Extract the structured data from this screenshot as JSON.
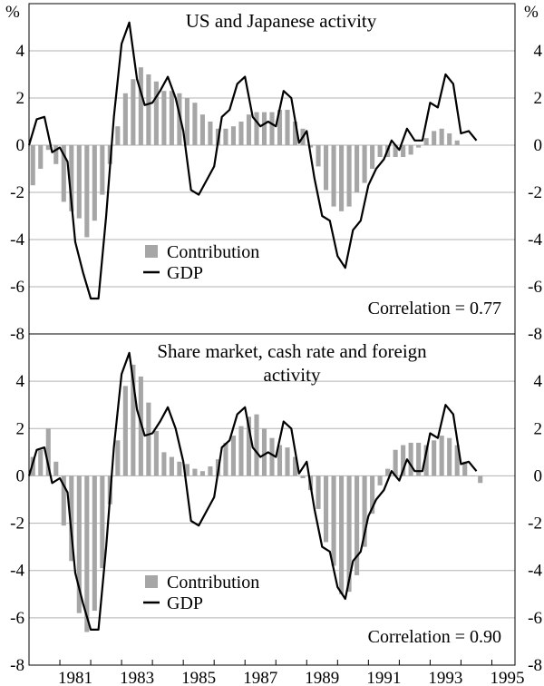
{
  "colors": {
    "bar": "#a6a6a6",
    "line": "#000000",
    "grid": "#b3b3b3",
    "frame": "#000000"
  },
  "unit_label": "%",
  "legend": {
    "bar_label": "Contribution",
    "line_label": "GDP"
  },
  "x_axis": {
    "tick_labels": [
      "1981",
      "1983",
      "1985",
      "1987",
      "1989",
      "1991",
      "1993",
      "1995"
    ]
  },
  "chart_data": [
    {
      "type": "bar",
      "title_lines": [
        "US and Japanese activity"
      ],
      "annotation": "Correlation = 0.77",
      "ylim": [
        -8,
        6
      ],
      "y_ticks": [
        4,
        2,
        0,
        -2,
        -4,
        -6,
        -8
      ],
      "x_start": 1980.0,
      "x_step": 0.25,
      "series": [
        {
          "name": "Contribution",
          "type": "bar",
          "values": [
            -1.7,
            -1.0,
            -0.2,
            -0.8,
            -2.4,
            -2.8,
            -3.1,
            -3.9,
            -3.2,
            -2.1,
            -0.8,
            0.8,
            2.2,
            2.8,
            3.3,
            3.0,
            2.7,
            2.3,
            2.3,
            2.2,
            2.0,
            1.8,
            1.3,
            1.0,
            0.7,
            0.7,
            0.8,
            1.0,
            1.3,
            1.4,
            1.4,
            1.4,
            1.5,
            1.5,
            1.0,
            0.7,
            -0.1,
            -0.9,
            -1.9,
            -2.6,
            -2.8,
            -2.6,
            -2.0,
            -1.6,
            -1.0,
            -0.5,
            -0.5,
            -0.5,
            -0.5,
            -0.4,
            -0.1,
            0.3,
            0.6,
            0.7,
            0.5,
            0.2
          ]
        },
        {
          "name": "GDP",
          "type": "line",
          "values": [
            0.0,
            1.1,
            1.2,
            -0.3,
            -0.1,
            -0.7,
            -4.1,
            -5.4,
            -6.5,
            -6.5,
            -3.0,
            1.2,
            4.3,
            5.2,
            2.8,
            1.7,
            1.8,
            2.3,
            2.9,
            2.0,
            0.6,
            -1.9,
            -2.1,
            -1.5,
            -0.9,
            1.2,
            1.5,
            2.6,
            2.9,
            1.2,
            0.8,
            1.0,
            0.8,
            2.3,
            2.0,
            0.1,
            0.6,
            -1.4,
            -3.0,
            -3.2,
            -4.7,
            -5.2,
            -3.6,
            -3.2,
            -1.7,
            -1.0,
            -0.6,
            0.2,
            -0.2,
            0.7,
            0.2,
            0.2,
            1.8,
            1.6,
            3.0,
            2.6,
            0.5,
            0.6,
            0.2
          ]
        }
      ]
    },
    {
      "type": "bar",
      "title_lines": [
        "Share market, cash rate and foreign",
        "activity"
      ],
      "annotation": "Correlation = 0.90",
      "ylim": [
        -8,
        6
      ],
      "y_ticks": [
        4,
        2,
        0,
        -2,
        -4,
        -6,
        -8
      ],
      "x_start": 1980.0,
      "x_step": 0.25,
      "series": [
        {
          "name": "Contribution",
          "type": "bar",
          "values": [
            0.8,
            1.1,
            2.0,
            0.6,
            -2.1,
            -3.6,
            -5.8,
            -6.6,
            -5.7,
            -3.9,
            -1.2,
            1.5,
            3.8,
            4.7,
            4.2,
            3.1,
            1.9,
            1.0,
            0.8,
            0.6,
            0.5,
            0.3,
            0.2,
            0.4,
            0.7,
            1.4,
            1.7,
            2.1,
            2.5,
            2.6,
            2.0,
            1.6,
            1.3,
            1.2,
            0.8,
            -0.1,
            -0.6,
            -1.4,
            -2.8,
            -3.8,
            -5.0,
            -4.9,
            -4.2,
            -3.0,
            -1.6,
            -0.4,
            0.3,
            1.1,
            1.3,
            1.4,
            1.4,
            1.3,
            1.5,
            1.7,
            1.6,
            1.3,
            0.6,
            0.0,
            -0.3
          ]
        },
        {
          "name": "GDP",
          "type": "line",
          "values": [
            0.0,
            1.1,
            1.2,
            -0.3,
            -0.1,
            -0.7,
            -4.1,
            -5.4,
            -6.5,
            -6.5,
            -3.0,
            1.2,
            4.3,
            5.2,
            2.8,
            1.7,
            1.8,
            2.3,
            2.9,
            2.0,
            0.6,
            -1.9,
            -2.1,
            -1.5,
            -0.9,
            1.2,
            1.5,
            2.6,
            2.9,
            1.2,
            0.8,
            1.0,
            0.8,
            2.3,
            2.0,
            0.1,
            0.6,
            -1.4,
            -3.0,
            -3.2,
            -4.7,
            -5.2,
            -3.6,
            -3.2,
            -1.7,
            -1.0,
            -0.6,
            0.2,
            -0.2,
            0.7,
            0.2,
            0.2,
            1.8,
            1.6,
            3.0,
            2.6,
            0.5,
            0.6,
            0.2
          ]
        }
      ]
    }
  ]
}
